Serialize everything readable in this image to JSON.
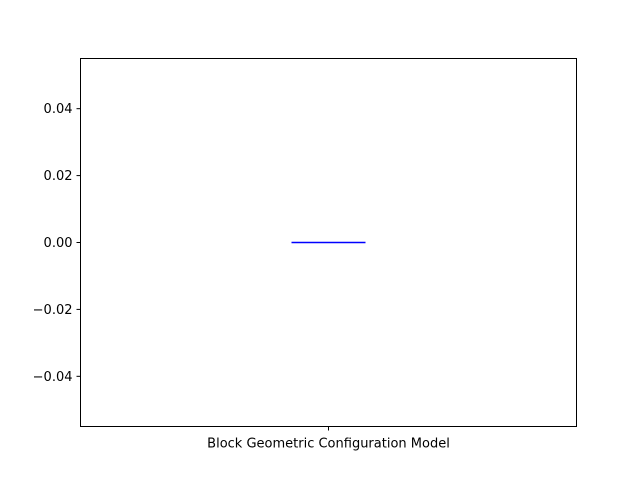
{
  "chart_data": {
    "type": "box",
    "categories": [
      "Block Geometric Configuration Model"
    ],
    "boxes": [
      {
        "category": "Block Geometric Configuration Model",
        "min": 0.0,
        "q1": 0.0,
        "median": 0.0,
        "q3": 0.0,
        "max": 0.0
      }
    ],
    "ylim": [
      -0.055,
      0.055
    ],
    "yticks": [
      0.04,
      0.02,
      0.0,
      -0.02,
      -0.04
    ],
    "ytick_labels": [
      "0.04",
      "0.02",
      "0.00",
      "−0.02",
      "−0.04"
    ],
    "title": "",
    "xlabel": "",
    "ylabel": "",
    "grid": false,
    "colors": {
      "box": "#0000ff",
      "median": "#0000ff",
      "axes": "#000000"
    }
  }
}
